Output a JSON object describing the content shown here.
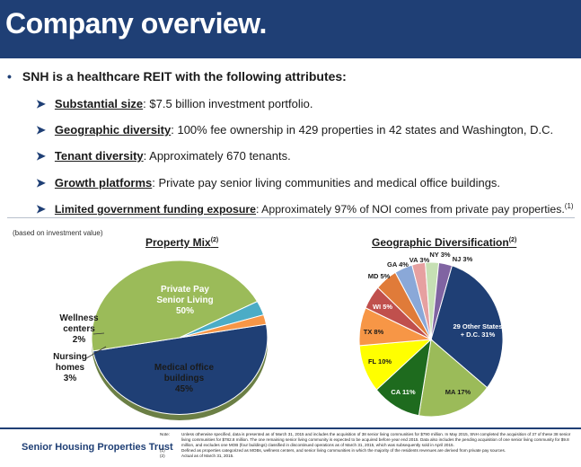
{
  "title": "Company overview.",
  "intro": "SNH is a healthcare REIT with the following attributes:",
  "attributes": [
    {
      "label": "Substantial size",
      "text": " $7.5 billion investment portfolio.",
      "sup": ""
    },
    {
      "label": "Geographic diversity",
      "text": " 100% fee ownership in 429 properties in 42 states and Washington, D.C.",
      "sup": ""
    },
    {
      "label": "Tenant diversity",
      "text": " Approximately 670 tenants.",
      "sup": ""
    },
    {
      "label": "Growth platforms",
      "text": " Private pay senior living communities and medical office buildings.",
      "sup": ""
    },
    {
      "label": "Limited government funding exposure",
      "text": " Approximately 97% of NOI comes from private pay properties.",
      "sup": "(1)"
    }
  ],
  "basis_note": "(based on investment value)",
  "chart_data": [
    {
      "type": "pie",
      "title": "Property Mix",
      "title_sup": "(2)",
      "slices": [
        {
          "label": "Private Pay Senior Living",
          "value": 50,
          "color": "#1f3f75",
          "label_lines": [
            "Private Pay",
            "Senior Living",
            "50%"
          ]
        },
        {
          "label": "Medical office buildings",
          "value": 45,
          "color": "#9bbb59",
          "label_lines": [
            "Medical office",
            "buildings",
            "45%"
          ]
        },
        {
          "label": "Nursing homes",
          "value": 3,
          "color": "#4bacc6",
          "label_lines": [
            "Nursing",
            "homes",
            "3%"
          ]
        },
        {
          "label": "Wellness centers",
          "value": 2,
          "color": "#f79646",
          "label_lines": [
            "Wellness",
            "centers",
            "2%"
          ]
        }
      ]
    },
    {
      "type": "pie",
      "title": "Geographic Diversification",
      "title_sup": "(2)",
      "slices": [
        {
          "label": "29 Other States + D.C.",
          "value": 31,
          "color": "#1f3f75",
          "label_lines": [
            "29 Other States",
            "+ D.C. 31%"
          ]
        },
        {
          "label": "MA",
          "value": 17,
          "color": "#9bbb59",
          "label_lines": [
            "MA 17%"
          ]
        },
        {
          "label": "CA",
          "value": 11,
          "color": "#1e6b1e",
          "label_lines": [
            "CA 11%"
          ]
        },
        {
          "label": "FL",
          "value": 10,
          "color": "#ffff00",
          "label_lines": [
            "FL 10%"
          ]
        },
        {
          "label": "TX",
          "value": 8,
          "color": "#f79646",
          "label_lines": [
            "TX 8%"
          ]
        },
        {
          "label": "WI",
          "value": 5,
          "color": "#c0504d",
          "label_lines": [
            "WI 5%"
          ]
        },
        {
          "label": "MD",
          "value": 5,
          "color": "#e07b39",
          "label_lines": [
            "MD 5%"
          ]
        },
        {
          "label": "GA",
          "value": 4,
          "color": "#8aa8d8",
          "label_lines": [
            "GA 4%"
          ]
        },
        {
          "label": "VA",
          "value": 3,
          "color": "#e6a0a0",
          "label_lines": [
            "VA 3%"
          ]
        },
        {
          "label": "NY",
          "value": 3,
          "color": "#c6e0b4",
          "label_lines": [
            "NY 3%"
          ]
        },
        {
          "label": "NJ",
          "value": 3,
          "color": "#8064a2",
          "label_lines": [
            "NJ 3%"
          ]
        }
      ]
    }
  ],
  "footer": {
    "company": "Senior Housing Properties Trust",
    "notes": [
      {
        "key": "Note:",
        "text": "Unless otherwise specified, data is presented as of March 31, 2015 and includes the acquisition of 38 senior living communities for $790 million. In May 2015, SNH completed the acquisition of 37 of these 38 senior living communities for $782.8 million. The one remaining senior living community is expected to be acquired before year end 2015. Data also includes the pending acquisition of one senior living community for $9.8 million, and excludes one MOB (four buildings) classified in discontinued operations as of March 31, 2015, which was subsequently sold in April 2015."
      },
      {
        "key": "(1)",
        "text": "Defined as properties categorized as MOBs, wellness centers, and senior living communities in which the majority of the residents revenues are derived from private pay sources."
      },
      {
        "key": "(2)",
        "text": "Actual as of March 31, 2015."
      }
    ]
  }
}
